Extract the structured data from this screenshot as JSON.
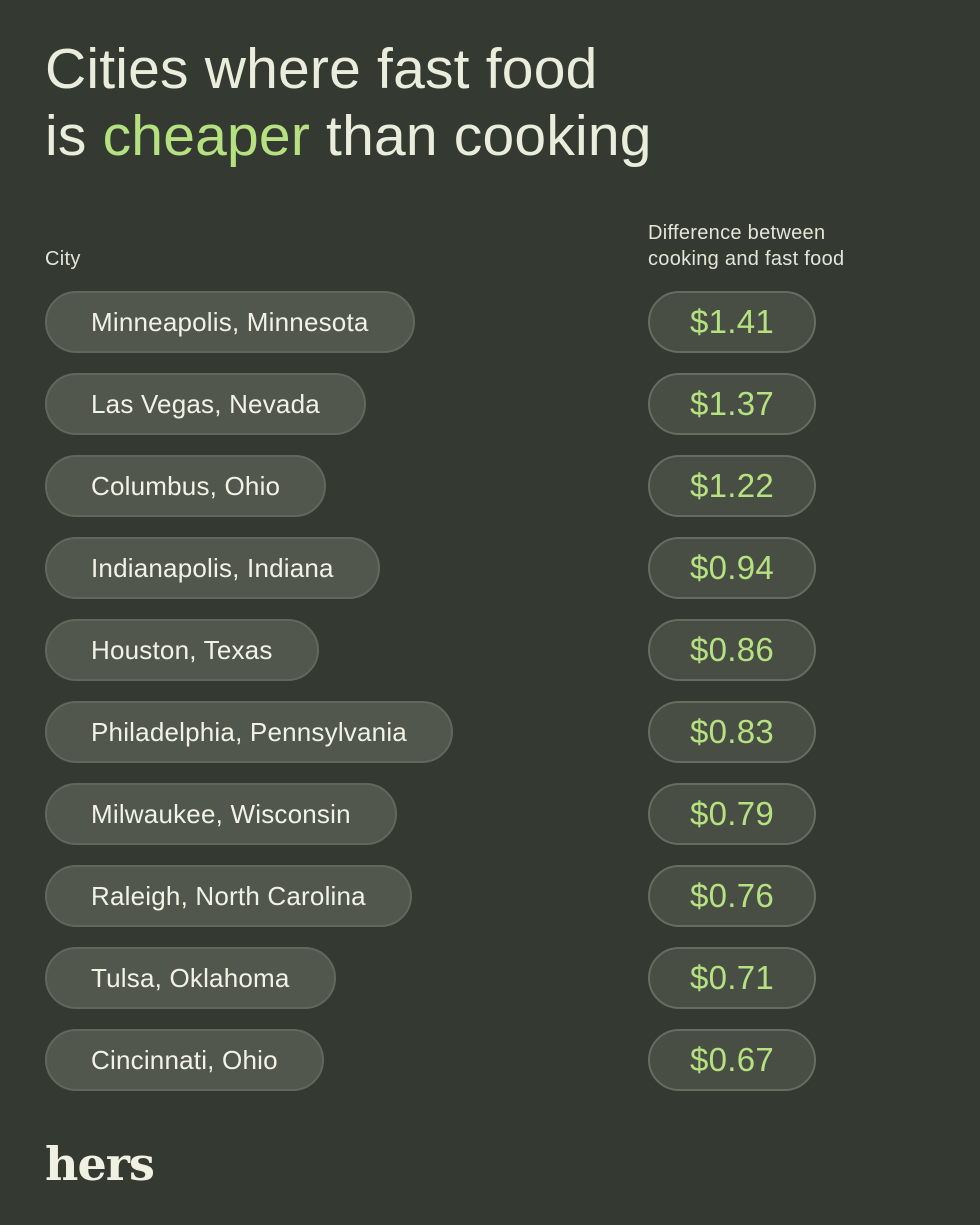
{
  "page": {
    "background_color": "#343a31",
    "accent_color": "#b5e181",
    "text_color": "#eaeddc"
  },
  "title": {
    "line1": "Cities where fast food",
    "line2_prefix": "is ",
    "line2_highlight": "cheaper",
    "line2_suffix": " than cooking"
  },
  "table": {
    "city_header": "City",
    "value_header": "Difference between cooking and fast food",
    "rows": [
      {
        "city": "Minneapolis, Minnesota",
        "value": "$1.41"
      },
      {
        "city": "Las Vegas, Nevada",
        "value": "$1.37"
      },
      {
        "city": "Columbus, Ohio",
        "value": "$1.22"
      },
      {
        "city": "Indianapolis, Indiana",
        "value": "$0.94"
      },
      {
        "city": "Houston, Texas",
        "value": "$0.86"
      },
      {
        "city": "Philadelphia, Pennsylvania",
        "value": "$0.83"
      },
      {
        "city": "Milwaukee, Wisconsin",
        "value": "$0.79"
      },
      {
        "city": "Raleigh, North Carolina",
        "value": "$0.76"
      },
      {
        "city": "Tulsa, Oklahoma",
        "value": "$0.71"
      },
      {
        "city": "Cincinnati, Ohio",
        "value": "$0.67"
      }
    ]
  },
  "footer": {
    "logo": "hers"
  },
  "chart_data": {
    "type": "table",
    "title": "Cities where fast food is cheaper than cooking",
    "columns": [
      "City",
      "Difference between cooking and fast food"
    ],
    "categories": [
      "Minneapolis, Minnesota",
      "Las Vegas, Nevada",
      "Columbus, Ohio",
      "Indianapolis, Indiana",
      "Houston, Texas",
      "Philadelphia, Pennsylvania",
      "Milwaukee, Wisconsin",
      "Raleigh, North Carolina",
      "Tulsa, Oklahoma",
      "Cincinnati, Ohio"
    ],
    "values": [
      1.41,
      1.37,
      1.22,
      0.94,
      0.86,
      0.83,
      0.79,
      0.76,
      0.71,
      0.67
    ],
    "value_unit": "USD",
    "legend": "none",
    "grid": "off"
  }
}
